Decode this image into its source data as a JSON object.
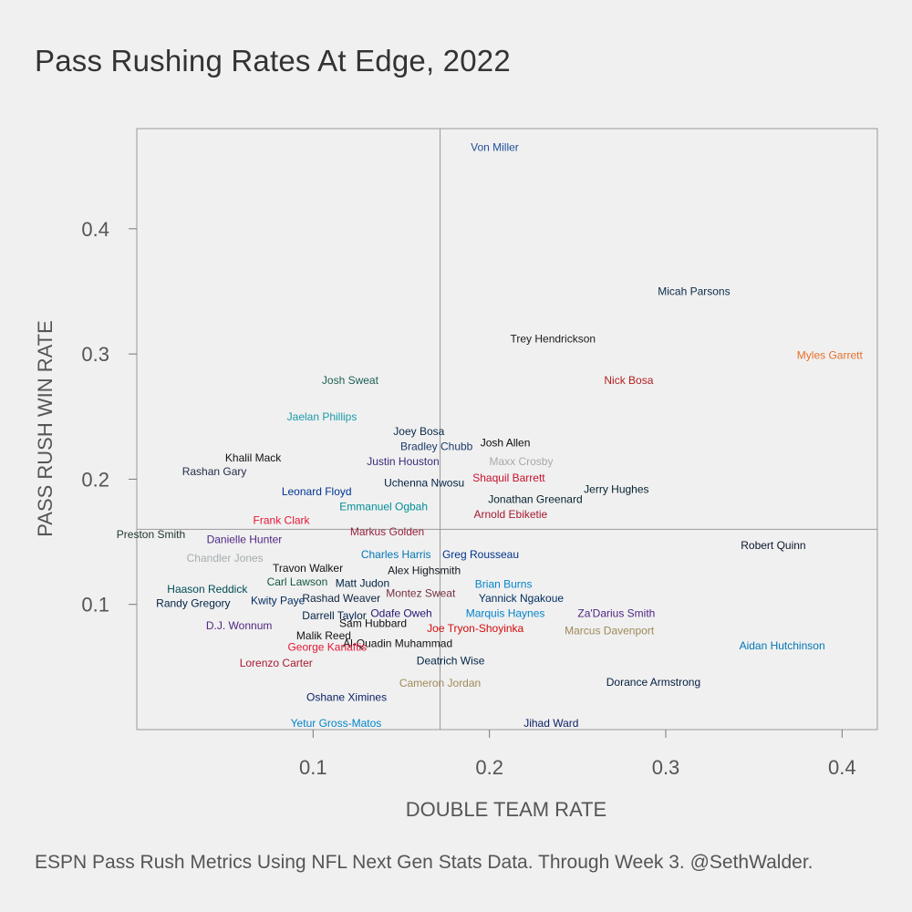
{
  "title": "Pass Rushing Rates At Edge, 2022",
  "caption": "ESPN Pass Rush Metrics Using NFL Next Gen Stats Data. Through Week 3. @SethWalder.",
  "chart_data": {
    "type": "scatter",
    "title": "Pass Rushing Rates At Edge, 2022",
    "xlabel": "DOUBLE TEAM RATE",
    "ylabel": "PASS RUSH WIN RATE",
    "xlim": [
      0.0,
      0.42
    ],
    "ylim": [
      0.0,
      0.48
    ],
    "xticks": [
      0.1,
      0.2,
      0.3,
      0.4
    ],
    "yticks": [
      0.1,
      0.2,
      0.3,
      0.4
    ],
    "xtick_labels": [
      "0.1",
      "0.2",
      "0.3",
      "0.4"
    ],
    "ytick_labels": [
      "0.1",
      "0.2",
      "0.3",
      "0.4"
    ],
    "grid": false,
    "reference_lines": {
      "x": 0.172,
      "y": 0.16
    },
    "points": [
      {
        "label": "Von Miller",
        "x": 0.203,
        "y": 0.465,
        "color": "#1f4e9a"
      },
      {
        "label": "Micah Parsons",
        "x": 0.316,
        "y": 0.35,
        "color": "#0b2a4a"
      },
      {
        "label": "Trey Hendrickson",
        "x": 0.236,
        "y": 0.312,
        "color": "#1a1a1a"
      },
      {
        "label": "Myles Garrett",
        "x": 0.393,
        "y": 0.299,
        "color": "#e5702b"
      },
      {
        "label": "Nick Bosa",
        "x": 0.279,
        "y": 0.279,
        "color": "#b01f1f"
      },
      {
        "label": "Josh Sweat",
        "x": 0.121,
        "y": 0.279,
        "color": "#1d5e55"
      },
      {
        "label": "Jaelan Phillips",
        "x": 0.105,
        "y": 0.25,
        "color": "#1a9aa8"
      },
      {
        "label": "Joey Bosa",
        "x": 0.16,
        "y": 0.238,
        "color": "#0a2a4a"
      },
      {
        "label": "Josh Allen",
        "x": 0.209,
        "y": 0.229,
        "color": "#0b0b0b"
      },
      {
        "label": "Bradley Chubb",
        "x": 0.17,
        "y": 0.226,
        "color": "#1d3a6a"
      },
      {
        "label": "Khalil Mack",
        "x": 0.066,
        "y": 0.217,
        "color": "#111111"
      },
      {
        "label": "Maxx Crosby",
        "x": 0.218,
        "y": 0.214,
        "color": "#a9a9a9"
      },
      {
        "label": "Justin Houston",
        "x": 0.151,
        "y": 0.214,
        "color": "#3c2a7a"
      },
      {
        "label": "Rashan Gary",
        "x": 0.044,
        "y": 0.206,
        "color": "#1f2a44"
      },
      {
        "label": "Shaquil Barrett",
        "x": 0.211,
        "y": 0.201,
        "color": "#c8102e"
      },
      {
        "label": "Uchenna Nwosu",
        "x": 0.163,
        "y": 0.197,
        "color": "#002244"
      },
      {
        "label": "Leonard Floyd",
        "x": 0.102,
        "y": 0.19,
        "color": "#003594"
      },
      {
        "label": "Jerry Hughes",
        "x": 0.272,
        "y": 0.192,
        "color": "#03202f"
      },
      {
        "label": "Jonathan Greenard",
        "x": 0.226,
        "y": 0.184,
        "color": "#03202f"
      },
      {
        "label": "Emmanuel Ogbah",
        "x": 0.14,
        "y": 0.178,
        "color": "#008e97"
      },
      {
        "label": "Arnold Ebiketie",
        "x": 0.212,
        "y": 0.172,
        "color": "#a71930"
      },
      {
        "label": "Frank Clark",
        "x": 0.082,
        "y": 0.167,
        "color": "#e31837"
      },
      {
        "label": "Markus Golden",
        "x": 0.142,
        "y": 0.158,
        "color": "#97233f"
      },
      {
        "label": "Preston Smith",
        "x": 0.008,
        "y": 0.156,
        "color": "#203731"
      },
      {
        "label": "Danielle Hunter",
        "x": 0.061,
        "y": 0.152,
        "color": "#4f2683"
      },
      {
        "label": "Robert Quinn",
        "x": 0.361,
        "y": 0.147,
        "color": "#0b162a"
      },
      {
        "label": "Charles Harris",
        "x": 0.147,
        "y": 0.14,
        "color": "#0076b6"
      },
      {
        "label": "Greg Rousseau",
        "x": 0.195,
        "y": 0.14,
        "color": "#00338d"
      },
      {
        "label": "Chandler Jones",
        "x": 0.05,
        "y": 0.137,
        "color": "#a5acaf"
      },
      {
        "label": "Travon Walker",
        "x": 0.097,
        "y": 0.129,
        "color": "#111111"
      },
      {
        "label": "Alex Highsmith",
        "x": 0.163,
        "y": 0.127,
        "color": "#101820"
      },
      {
        "label": "Carl Lawson",
        "x": 0.091,
        "y": 0.118,
        "color": "#125740"
      },
      {
        "label": "Matt Judon",
        "x": 0.128,
        "y": 0.117,
        "color": "#002244"
      },
      {
        "label": "Brian Burns",
        "x": 0.208,
        "y": 0.116,
        "color": "#0085ca"
      },
      {
        "label": "Haason Reddick",
        "x": 0.04,
        "y": 0.112,
        "color": "#004c54"
      },
      {
        "label": "Montez Sweat",
        "x": 0.161,
        "y": 0.109,
        "color": "#773141"
      },
      {
        "label": "Rashad Weaver",
        "x": 0.116,
        "y": 0.105,
        "color": "#0c2340"
      },
      {
        "label": "Yannick Ngakoue",
        "x": 0.218,
        "y": 0.105,
        "color": "#002c5f"
      },
      {
        "label": "Kwity Paye",
        "x": 0.08,
        "y": 0.103,
        "color": "#002c5f"
      },
      {
        "label": "Randy Gregory",
        "x": 0.032,
        "y": 0.101,
        "color": "#002244"
      },
      {
        "label": "Odafe Oweh",
        "x": 0.15,
        "y": 0.093,
        "color": "#241773"
      },
      {
        "label": "Marquis Haynes",
        "x": 0.209,
        "y": 0.093,
        "color": "#0085ca"
      },
      {
        "label": "Za'Darius Smith",
        "x": 0.272,
        "y": 0.093,
        "color": "#4f2683"
      },
      {
        "label": "Darrell Taylor",
        "x": 0.112,
        "y": 0.091,
        "color": "#002244"
      },
      {
        "label": "Sam Hubbard",
        "x": 0.134,
        "y": 0.085,
        "color": "#111111"
      },
      {
        "label": "D.J. Wonnum",
        "x": 0.058,
        "y": 0.083,
        "color": "#4f2683"
      },
      {
        "label": "Joe Tryon-Shoyinka",
        "x": 0.192,
        "y": 0.081,
        "color": "#d50a0a"
      },
      {
        "label": "Marcus Davenport",
        "x": 0.268,
        "y": 0.079,
        "color": "#9f8958"
      },
      {
        "label": "Malik Reed",
        "x": 0.106,
        "y": 0.075,
        "color": "#111111"
      },
      {
        "label": "Al-Quadin Muhammad",
        "x": 0.148,
        "y": 0.069,
        "color": "#111111"
      },
      {
        "label": "Aidan Hutchinson",
        "x": 0.366,
        "y": 0.067,
        "color": "#0076b6"
      },
      {
        "label": "George Karlaftis",
        "x": 0.108,
        "y": 0.066,
        "color": "#e31837"
      },
      {
        "label": "Deatrich Wise",
        "x": 0.178,
        "y": 0.055,
        "color": "#002244"
      },
      {
        "label": "Lorenzo Carter",
        "x": 0.079,
        "y": 0.053,
        "color": "#a71930"
      },
      {
        "label": "Cameron Jordan",
        "x": 0.172,
        "y": 0.037,
        "color": "#9f8958"
      },
      {
        "label": "Dorance Armstrong",
        "x": 0.293,
        "y": 0.038,
        "color": "#041e42"
      },
      {
        "label": "Oshane Ximines",
        "x": 0.119,
        "y": 0.026,
        "color": "#0b2265"
      },
      {
        "label": "Yetur Gross-Matos",
        "x": 0.113,
        "y": 0.005,
        "color": "#0085ca"
      },
      {
        "label": "Jihad Ward",
        "x": 0.235,
        "y": 0.005,
        "color": "#0b2265"
      }
    ]
  }
}
